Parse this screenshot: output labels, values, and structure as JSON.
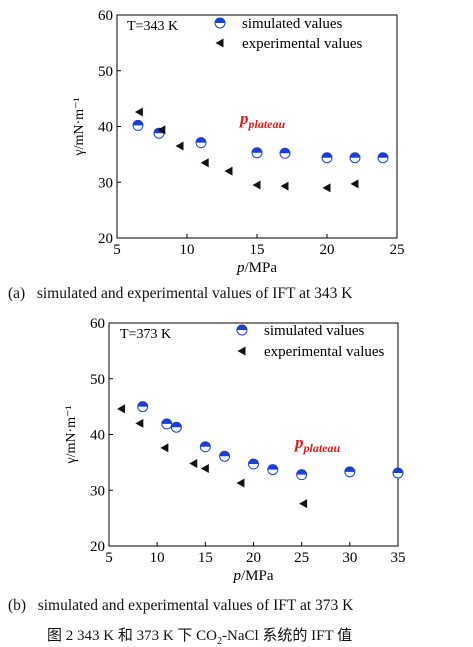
{
  "chart_data": [
    {
      "type": "scatter",
      "panel_label": "(a)",
      "caption": "simulated and experimental values of IFT at 343 K",
      "condition_label": "T=343 K",
      "annotation": "p",
      "annotation_sub": "plateau",
      "ylabel": "γ/mN·m⁻¹",
      "xlabel_italic": "p",
      "xlabel_unit": "/MPa",
      "xlim": [
        5,
        25
      ],
      "ylim": [
        20,
        60
      ],
      "xticks": [
        5,
        10,
        15,
        20,
        25
      ],
      "yticks": [
        20,
        30,
        40,
        50,
        60
      ],
      "legend_position": "top-right",
      "series": [
        {
          "name": "simulated values",
          "marker": "half-filled-circle",
          "color": "#1a3fd6",
          "x": [
            6.5,
            8.0,
            11.0,
            15.0,
            17.0,
            20.0,
            22.0,
            24.0
          ],
          "y": [
            40.2,
            38.8,
            37.1,
            35.3,
            35.2,
            34.4,
            34.4,
            34.4
          ]
        },
        {
          "name": "experimental values",
          "marker": "left-triangle",
          "color": "#111111",
          "x": [
            6.6,
            8.2,
            9.5,
            11.3,
            13.0,
            15.0,
            17.0,
            20.0,
            22.0
          ],
          "y": [
            42.6,
            39.4,
            36.5,
            33.5,
            32.0,
            29.5,
            29.3,
            29.0,
            29.7
          ]
        }
      ]
    },
    {
      "type": "scatter",
      "panel_label": "(b)",
      "caption": "simulated and experimental values of IFT at 373 K",
      "condition_label": "T=373 K",
      "annotation": "p",
      "annotation_sub": "plateau",
      "ylabel": "γ/mN·m⁻¹",
      "xlabel_italic": "p",
      "xlabel_unit": "/MPa",
      "xlim": [
        5,
        35
      ],
      "ylim": [
        20,
        60
      ],
      "xticks": [
        5,
        10,
        15,
        20,
        25,
        30,
        35
      ],
      "yticks": [
        20,
        30,
        40,
        50,
        60
      ],
      "legend_position": "top-right",
      "series": [
        {
          "name": "simulated values",
          "marker": "half-filled-circle",
          "color": "#1a3fd6",
          "x": [
            8.5,
            11.0,
            12.0,
            15.0,
            17.0,
            20.0,
            22.0,
            25.0,
            30.0,
            35.0
          ],
          "y": [
            45.0,
            41.9,
            41.3,
            37.8,
            36.1,
            34.7,
            33.7,
            32.8,
            33.3,
            33.1
          ]
        },
        {
          "name": "experimental values",
          "marker": "left-triangle",
          "color": "#111111",
          "x": [
            6.3,
            8.2,
            10.8,
            13.8,
            15.0,
            18.7,
            25.2
          ],
          "y": [
            44.6,
            42.0,
            37.6,
            34.8,
            33.9,
            31.3,
            27.6
          ]
        }
      ]
    }
  ],
  "figure_caption": {
    "prefix": "图 2   343 K 和 373 K 下 CO",
    "sub": "2",
    "suffix": "-NaCl 系统的 IFT 值"
  }
}
